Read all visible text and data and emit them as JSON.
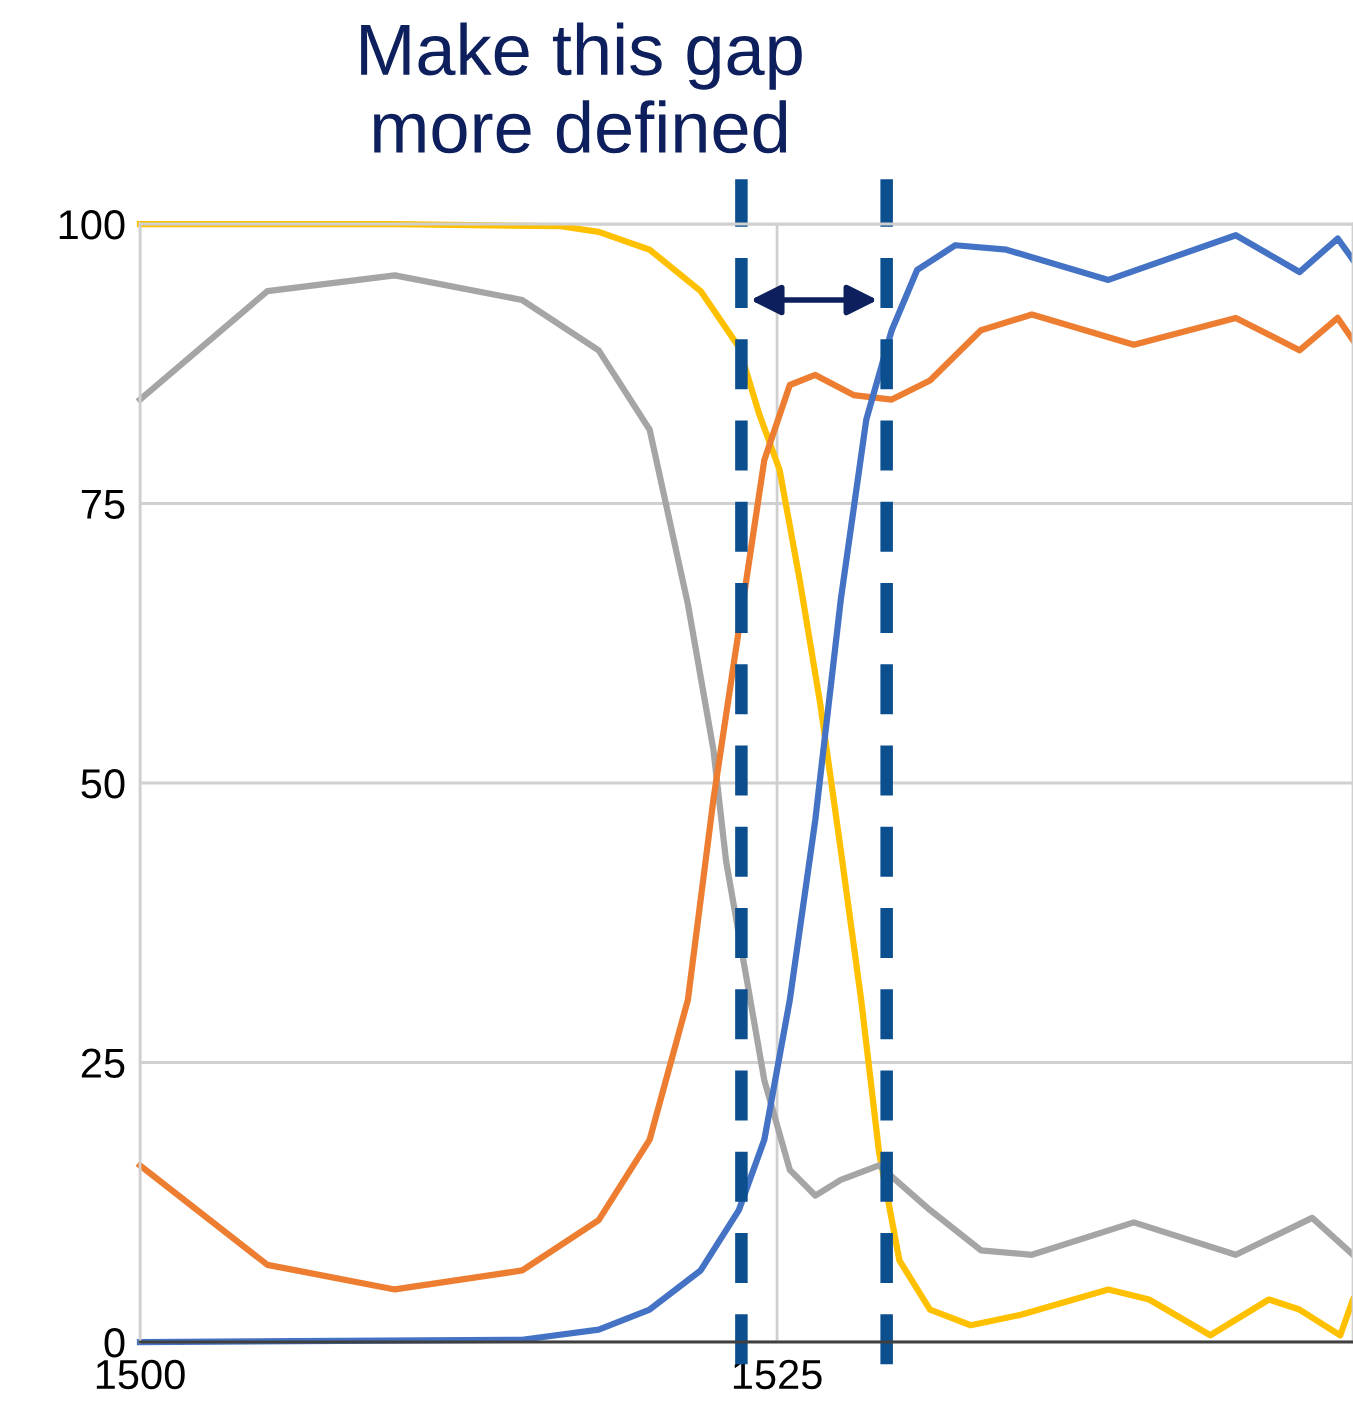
{
  "chart_data": {
    "type": "line",
    "title": "Make this gap\nmore defined",
    "xlim": [
      1500,
      1547.6
    ],
    "xticks": [
      1500,
      1525
    ],
    "ylim": [
      0,
      100
    ],
    "yticks": [
      0,
      25,
      50,
      75,
      100
    ],
    "grid": true,
    "line_style": "solid",
    "marker": "none",
    "series": [
      {
        "color": "#ffc000",
        "x": [
          1500,
          1510,
          1516.5,
          1518,
          1520,
          1522,
          1523.5,
          1524.3,
          1525.1,
          1525.9,
          1526.7,
          1527.5,
          1528.3,
          1529,
          1529.8,
          1531,
          1532.6,
          1534.5,
          1538,
          1539.6,
          1542,
          1544.3,
          1545.5,
          1547.1,
          1547.6
        ],
        "values": [
          100,
          100,
          99.8,
          99.3,
          97.7,
          94,
          89,
          83,
          78,
          68,
          57,
          44,
          30.6,
          17,
          7.3,
          2.9,
          1.5,
          2.4,
          4.7,
          3.8,
          0.6,
          3.8,
          2.9,
          0.6,
          3.8
        ]
      },
      {
        "color": "#a5a5a5",
        "x": [
          1500,
          1505,
          1510,
          1515,
          1518,
          1520,
          1521.5,
          1522.5,
          1523,
          1524.5,
          1525.5,
          1526.5,
          1527.5,
          1529,
          1531,
          1533,
          1535,
          1539,
          1543,
          1546,
          1547.6
        ],
        "values": [
          84.3,
          94,
          95.4,
          93.2,
          88.7,
          81.6,
          66,
          53,
          43,
          23.4,
          15.4,
          13.1,
          14.5,
          15.8,
          11.8,
          8.2,
          7.8,
          10.7,
          7.8,
          11.1,
          7.8
        ]
      },
      {
        "color": "#ed7d31",
        "x": [
          1500,
          1505,
          1510,
          1515,
          1518,
          1520,
          1521.5,
          1522.5,
          1523.5,
          1524.5,
          1525.5,
          1526.5,
          1528,
          1529.5,
          1531,
          1533,
          1535,
          1539,
          1543,
          1545.5,
          1547,
          1547.6
        ],
        "values": [
          15.8,
          6.9,
          4.7,
          6.4,
          10.9,
          18.1,
          30.6,
          48.5,
          63.7,
          78.9,
          85.6,
          86.5,
          84.7,
          84.3,
          86,
          90.5,
          91.9,
          89.2,
          91.6,
          88.7,
          91.6,
          89.6
        ]
      },
      {
        "color": "#4472c4",
        "x": [
          1500,
          1515,
          1518,
          1520,
          1522,
          1523.5,
          1524.5,
          1525.5,
          1526.5,
          1527.5,
          1528.5,
          1529.5,
          1530.5,
          1532,
          1534,
          1538,
          1543,
          1545.5,
          1547,
          1547.6
        ],
        "values": [
          0,
          0.2,
          1.1,
          2.9,
          6.4,
          11.8,
          18.1,
          30.6,
          46.7,
          66.4,
          82.5,
          90.5,
          95.9,
          98.1,
          97.7,
          95,
          99,
          95.7,
          98.7,
          96.8
        ]
      }
    ],
    "ref_lines": [
      {
        "axis": "x",
        "value": 1523.6,
        "label": null,
        "color": "#0b4f8f",
        "line_style": "dashed"
      },
      {
        "axis": "x",
        "value": 1529.3,
        "label": null,
        "color": "#0b4f8f",
        "line_style": "dashed"
      }
    ]
  }
}
